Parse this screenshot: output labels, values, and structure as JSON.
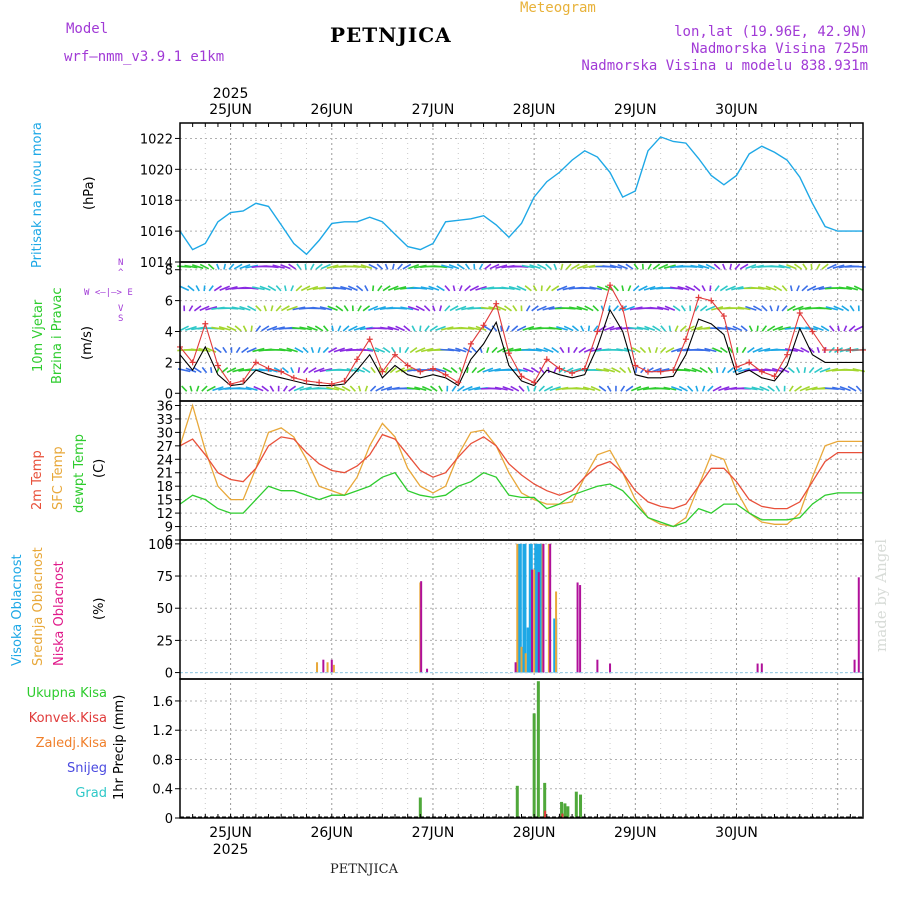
{
  "header": {
    "model_label": "Model",
    "model_name": "wrf—nmm_v3.9.1  e1km",
    "station": "PETNJICA",
    "product": "Meteogram",
    "coords": "lon,lat (19.96E, 42.9N)",
    "elevation": "Nadmorska Visina 725m",
    "model_elevation": "Nadmorska Visina u modelu 838.931m"
  },
  "footer": {
    "station": "PETNJICA",
    "watermark": "made by Angel"
  },
  "axis": {
    "year": "2025",
    "days": [
      "25JUN",
      "26JUN",
      "27JUN",
      "28JUN",
      "29JUN",
      "30JUN"
    ]
  },
  "labels": {
    "pressure": [
      "Pritisak na nivou mora",
      "(hPa)"
    ],
    "wind": [
      "10m Vjetar",
      "Brzina i Pravac",
      "(m/s)"
    ],
    "wind_compass": [
      "N",
      "^",
      "W  <—|—>  E",
      "V",
      "S"
    ],
    "temp": [
      "2m Temp",
      "SFC Temp",
      "dewpt Temp",
      "(C)"
    ],
    "cloud": [
      "Visoka Oblacnost",
      "Srednja Oblacnost",
      "Niska Oblacnost",
      "(%)"
    ],
    "precip_unit": "1hr Precip (mm)",
    "precip_legend": [
      "Ukupna Kisa",
      "Konvek.Kisa",
      "Zaledj.Kisa",
      "Snijeg",
      "Grad"
    ]
  },
  "colors": {
    "pressure": "#1ea8e6",
    "wind_mean": "#000000",
    "wind_gust": "#e03a3a",
    "t2m": "#e8503a",
    "sfc": "#e8a83a",
    "dew": "#2ecc2e",
    "cloud_high": "#1ea8e6",
    "cloud_mid": "#e8a83a",
    "cloud_low": "#b0109a",
    "rain_total": "#4fa83a",
    "rain_conv": "#e03a3a",
    "rain_frz": "#f07f2a",
    "snow": "#4a4ae0",
    "hail": "#2ec8c8"
  },
  "chart_data": [
    {
      "type": "line",
      "name": "pressure",
      "ylabel": "(hPa)",
      "ylim": [
        1014,
        1023
      ],
      "yticks": [
        1014,
        1016,
        1018,
        1020,
        1022
      ],
      "x": [
        0,
        3,
        6,
        9,
        12,
        15,
        18,
        21,
        24,
        27,
        30,
        33,
        36,
        39,
        42,
        45,
        48,
        51,
        54,
        57,
        60,
        63,
        66,
        69,
        72,
        75,
        78,
        81,
        84,
        87,
        90,
        93,
        96,
        99,
        102,
        105,
        108,
        111,
        114,
        117,
        120,
        123,
        126,
        129,
        132,
        135,
        138,
        141,
        144,
        147,
        150,
        153,
        156,
        159,
        162
      ],
      "values": [
        1016.0,
        1014.8,
        1015.2,
        1016.6,
        1017.2,
        1017.3,
        1017.8,
        1017.6,
        1016.4,
        1015.2,
        1014.5,
        1015.4,
        1016.5,
        1016.6,
        1016.6,
        1016.9,
        1016.6,
        1015.8,
        1015.0,
        1014.8,
        1015.2,
        1016.6,
        1016.7,
        1016.8,
        1017.0,
        1016.4,
        1015.6,
        1016.5,
        1018.2,
        1019.2,
        1019.8,
        1020.6,
        1021.2,
        1020.8,
        1019.8,
        1018.2,
        1018.6,
        1021.2,
        1022.1,
        1021.8,
        1021.7,
        1020.7,
        1019.6,
        1019.0,
        1019.6,
        1021.0,
        1021.5,
        1021.1,
        1020.6,
        1019.5,
        1017.8,
        1016.3,
        1016.0,
        1016.0,
        1016.0
      ]
    },
    {
      "type": "line",
      "name": "wind",
      "ylabel": "(m/s)",
      "ylim": [
        -0.5,
        8.5
      ],
      "yticks": [
        0,
        2,
        4,
        6,
        8
      ],
      "x": [
        0,
        3,
        6,
        9,
        12,
        15,
        18,
        21,
        24,
        27,
        30,
        33,
        36,
        39,
        42,
        45,
        48,
        51,
        54,
        57,
        60,
        63,
        66,
        69,
        72,
        75,
        78,
        81,
        84,
        87,
        90,
        93,
        96,
        99,
        102,
        105,
        108,
        111,
        114,
        117,
        120,
        123,
        126,
        129,
        132,
        135,
        138,
        141,
        144,
        147,
        150,
        153,
        156,
        159,
        162
      ],
      "series": [
        {
          "name": "mean",
          "values": [
            2.5,
            1.5,
            3.0,
            1.2,
            0.5,
            0.6,
            1.5,
            1.2,
            1.0,
            0.8,
            0.6,
            0.5,
            0.5,
            0.6,
            1.5,
            2.5,
            1.0,
            1.8,
            1.2,
            1.0,
            1.2,
            1.0,
            0.5,
            2.2,
            3.2,
            4.6,
            1.8,
            0.8,
            0.5,
            1.5,
            1.2,
            1.0,
            1.2,
            3.0,
            5.4,
            4.0,
            1.2,
            1.0,
            1.0,
            1.1,
            2.5,
            4.8,
            4.5,
            3.8,
            1.2,
            1.5,
            1.0,
            0.8,
            1.8,
            4.2,
            2.5,
            2.0,
            2.0,
            2.0,
            2.0
          ]
        },
        {
          "name": "gust",
          "values": [
            3.0,
            2.0,
            4.5,
            1.8,
            0.6,
            0.8,
            2.0,
            1.6,
            1.4,
            1.0,
            0.8,
            0.7,
            0.6,
            0.8,
            2.2,
            3.5,
            1.4,
            2.5,
            1.8,
            1.4,
            1.6,
            1.2,
            0.7,
            3.2,
            4.4,
            5.8,
            2.6,
            1.1,
            0.7,
            2.2,
            1.6,
            1.3,
            1.6,
            4.0,
            7.0,
            5.5,
            1.8,
            1.4,
            1.4,
            1.5,
            3.5,
            6.2,
            6.0,
            5.0,
            1.7,
            2.0,
            1.4,
            1.1,
            2.5,
            5.2,
            4.0,
            2.8,
            2.8,
            2.8,
            2.8
          ]
        }
      ]
    },
    {
      "type": "line",
      "name": "temperature",
      "ylabel": "(C)",
      "ylim": [
        6,
        37
      ],
      "yticks": [
        6,
        9,
        12,
        15,
        18,
        21,
        24,
        27,
        30,
        33,
        36
      ],
      "x": [
        0,
        3,
        6,
        9,
        12,
        15,
        18,
        21,
        24,
        27,
        30,
        33,
        36,
        39,
        42,
        45,
        48,
        51,
        54,
        57,
        60,
        63,
        66,
        69,
        72,
        75,
        78,
        81,
        84,
        87,
        90,
        93,
        96,
        99,
        102,
        105,
        108,
        111,
        114,
        117,
        120,
        123,
        126,
        129,
        132,
        135,
        138,
        141,
        144,
        147,
        150,
        153,
        156,
        159,
        162
      ],
      "series": [
        {
          "name": "2m",
          "values": [
            27.0,
            28.5,
            25.0,
            21.0,
            19.5,
            19.0,
            22.0,
            27.0,
            29.0,
            28.5,
            25.5,
            23.0,
            21.5,
            21.0,
            22.5,
            25.0,
            29.5,
            28.5,
            25.0,
            21.5,
            20.0,
            21.0,
            24.5,
            27.5,
            29.0,
            27.0,
            23.0,
            20.5,
            18.5,
            17.0,
            16.0,
            17.0,
            20.0,
            22.5,
            23.5,
            21.0,
            17.0,
            14.5,
            13.5,
            13.0,
            14.0,
            18.0,
            22.0,
            22.0,
            19.0,
            15.0,
            13.5,
            13.0,
            13.0,
            14.5,
            19.0,
            23.5,
            25.5,
            25.5,
            25.5
          ]
        },
        {
          "name": "SFC",
          "values": [
            27.0,
            36.0,
            26.0,
            18.0,
            15.0,
            15.0,
            22.0,
            30.0,
            31.0,
            29.0,
            24.0,
            18.0,
            17.0,
            16.0,
            20.0,
            27.0,
            32.0,
            29.0,
            22.0,
            18.0,
            16.5,
            18.0,
            25.0,
            30.0,
            30.5,
            27.0,
            21.0,
            16.5,
            15.0,
            14.0,
            14.0,
            14.5,
            20.0,
            25.0,
            26.0,
            21.0,
            15.0,
            11.0,
            9.5,
            9.0,
            11.0,
            18.0,
            25.0,
            24.0,
            17.0,
            12.0,
            10.0,
            9.5,
            9.5,
            12.0,
            20.0,
            27.0,
            28.0,
            28.0,
            28.0
          ]
        },
        {
          "name": "dewpt",
          "values": [
            14.0,
            16.0,
            15.0,
            13.0,
            12.0,
            12.0,
            15.0,
            18.0,
            17.0,
            17.0,
            16.0,
            15.0,
            16.0,
            16.0,
            17.0,
            18.0,
            20.0,
            21.0,
            17.0,
            16.0,
            15.5,
            16.0,
            18.0,
            19.0,
            21.0,
            20.0,
            16.0,
            15.5,
            15.5,
            13.0,
            14.0,
            16.0,
            17.0,
            18.0,
            18.5,
            17.0,
            14.0,
            11.0,
            10.0,
            9.0,
            10.0,
            13.0,
            12.0,
            14.0,
            14.0,
            12.0,
            10.5,
            10.5,
            10.5,
            11.0,
            14.0,
            16.0,
            16.5,
            16.5,
            16.5
          ]
        }
      ]
    },
    {
      "type": "bar",
      "name": "cloud_cover",
      "ylabel": "(%)",
      "ylim": [
        -5,
        103
      ],
      "yticks": [
        0,
        25,
        50,
        75,
        100
      ],
      "series": [
        {
          "name": "high",
          "x": [
            80.6,
            81.7,
            82.7,
            83.2,
            84.5,
            85.0,
            85.8,
            89.0
          ],
          "values": [
            100,
            100,
            35,
            100,
            100,
            100,
            100,
            42
          ]
        },
        {
          "name": "mid",
          "x": [
            32.5,
            35.0,
            36.5,
            57.0,
            80.0,
            81.0,
            82.0,
            84.0,
            86.0,
            87.5,
            89.2
          ],
          "values": [
            8,
            8,
            6,
            70,
            100,
            20,
            15,
            80,
            100,
            100,
            63
          ]
        },
        {
          "name": "low",
          "x": [
            34.0,
            36.0,
            57.2,
            58.6,
            79.6,
            83.5,
            85.1,
            86.2,
            87.8,
            94.3,
            94.9,
            99.0,
            102.0,
            137.0,
            138.0,
            160.0,
            161.0
          ],
          "values": [
            10,
            10,
            71,
            3,
            8,
            80,
            78,
            100,
            100,
            70,
            68,
            10,
            7,
            7,
            7,
            10,
            74
          ]
        }
      ]
    },
    {
      "type": "bar",
      "name": "precipitation",
      "ylabel": "1hr Precip (mm)",
      "ylim": [
        0,
        1.9
      ],
      "yticks": [
        0,
        0.4,
        0.8,
        1.2,
        1.6
      ],
      "series": [
        {
          "name": "total",
          "x": [
            57.0,
            80.0,
            84.0,
            85.0,
            86.5,
            90.5,
            91.3,
            92.0,
            94.0,
            95.0
          ],
          "values": [
            0.28,
            0.44,
            1.43,
            1.87,
            0.48,
            0.22,
            0.2,
            0.16,
            0.36,
            0.32
          ]
        },
        {
          "name": "convective",
          "x": [
            86.6,
            90.7
          ],
          "values": [
            0.1,
            0.06
          ]
        }
      ]
    }
  ]
}
